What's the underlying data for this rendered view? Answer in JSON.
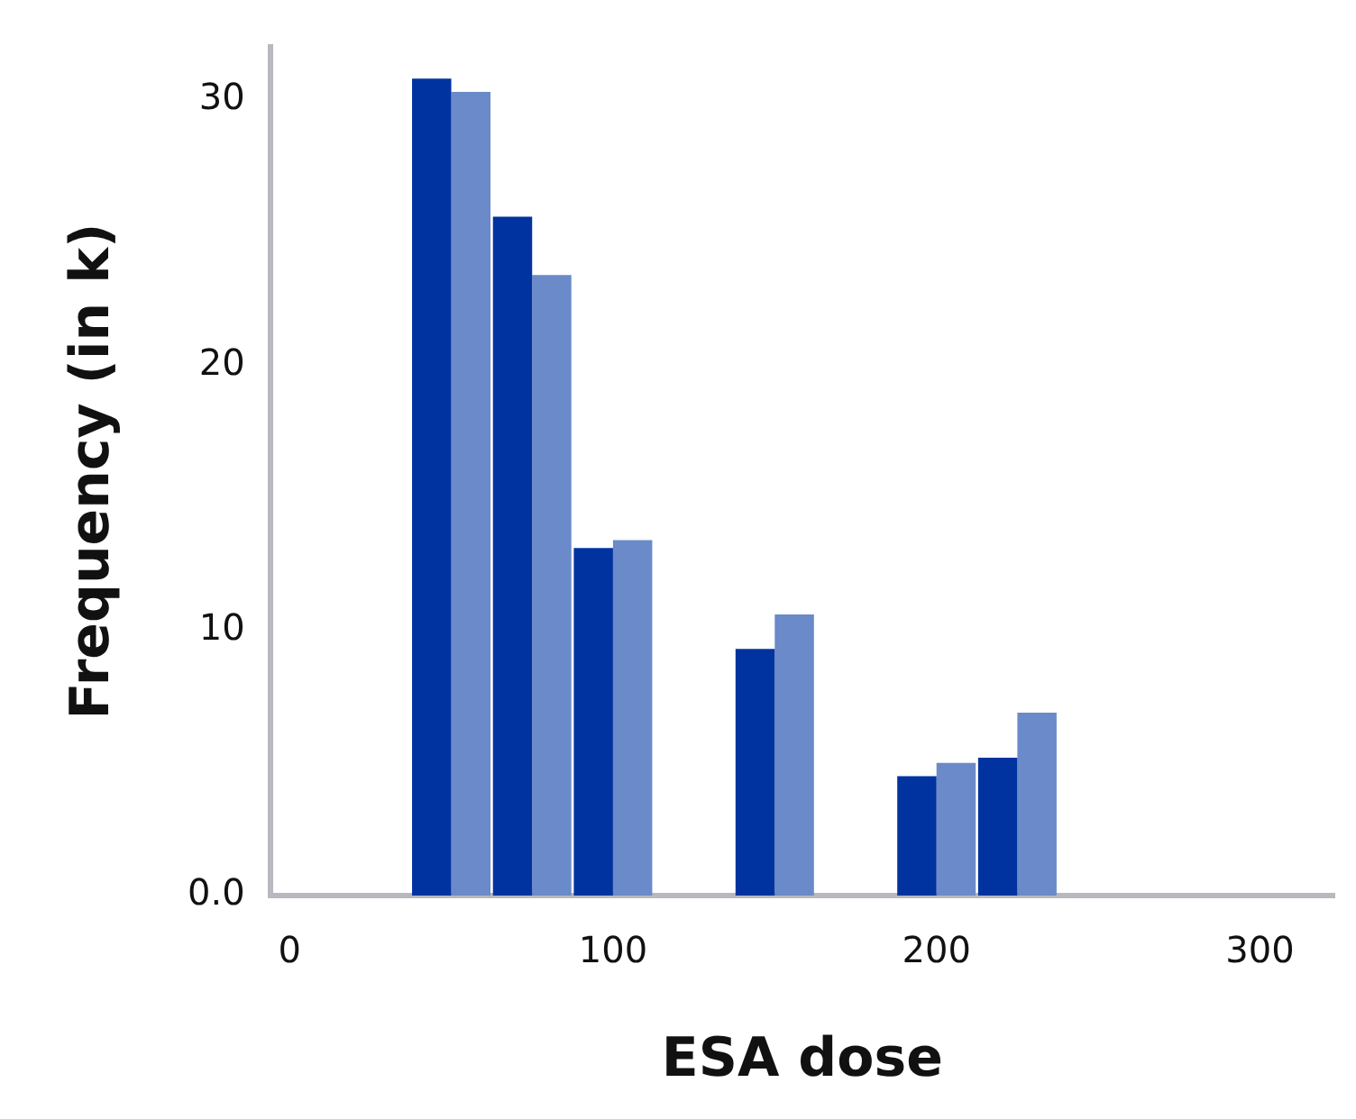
{
  "chart_data": {
    "type": "bar",
    "xlabel": "ESA dose",
    "ylabel": "Frequency (in k)",
    "x": [
      50,
      75,
      100,
      150,
      200,
      225
    ],
    "series": [
      {
        "color": "#0033a0",
        "values": [
          30.8,
          25.6,
          13.1,
          9.3,
          4.5,
          5.2
        ]
      },
      {
        "color": "#6a8ac9",
        "values": [
          30.3,
          23.4,
          13.4,
          10.6,
          5.0,
          6.9
        ]
      }
    ],
    "xlim": [
      -6,
      323
    ],
    "xticks": [
      0,
      100,
      200,
      300
    ],
    "ylim": [
      0,
      32
    ],
    "yticks": [
      {
        "value": 0,
        "label": "0.0"
      },
      10,
      20,
      30
    ],
    "grid": false,
    "legend": false
  }
}
